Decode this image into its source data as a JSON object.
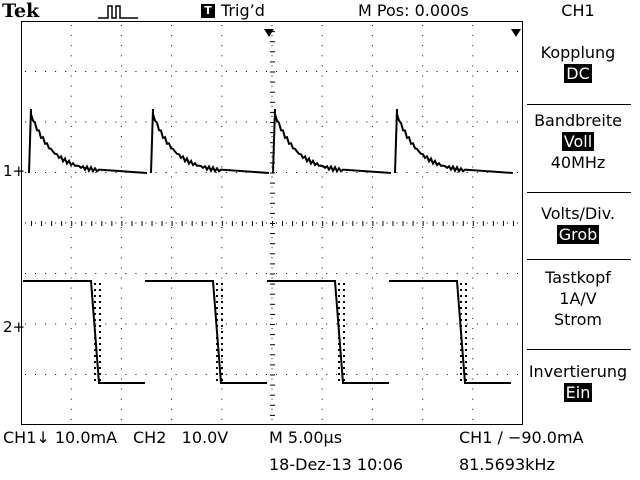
{
  "header": {
    "brand": "Tek",
    "trigger_status_badge": "T",
    "trigger_status": "Trig’d",
    "horizontal_position": "M Pos: 0.000s",
    "menu_channel": "CH1"
  },
  "side_menu": {
    "coupling": {
      "label": "Kopplung",
      "value": "DC"
    },
    "bandwidth": {
      "label": "Bandbreite",
      "value": "Voll",
      "extra": "40MHz"
    },
    "volts_div": {
      "label": "Volts/Div.",
      "value": "Grob"
    },
    "probe": {
      "label": "Tastkopf",
      "value": "1A/V",
      "extra": "Strom"
    },
    "invert": {
      "label": "Invertierung",
      "value": "Ein"
    }
  },
  "markers": {
    "ch1": "1+",
    "ch2": "2+"
  },
  "status_bar": {
    "ch1_scale": "CH1↓ 10.0mA",
    "ch2_scale": "CH2   10.0V",
    "timebase": "M 5.00µs",
    "trigger": "CH1 ∕ −90.0mA",
    "datetime": "18-Dez-13 10:06",
    "frequency": "81.5693kHz"
  },
  "colors": {
    "background": "#ffffff",
    "trace": "#000000"
  }
}
